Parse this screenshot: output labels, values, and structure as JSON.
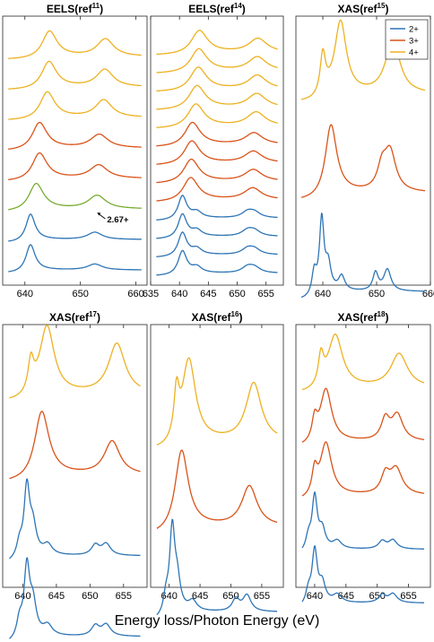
{
  "figure": {
    "xlabel": "Energy loss/Photon Energy (eV)",
    "colors": {
      "2+": "#2E75B6",
      "3+": "#D95319",
      "4+": "#EDB120",
      "2.67+": "#77AC30"
    },
    "legend": {
      "placement": "top-right of panel 3",
      "entries": [
        "2+",
        "3+",
        "4+"
      ]
    }
  },
  "chart_data": [
    {
      "type": "line",
      "title_main": "EELS(ref",
      "title_sup": "11",
      "title_end": ")",
      "xlim": [
        636,
        662
      ],
      "xticks": [
        640,
        650,
        660
      ],
      "series": [
        {
          "valence": "4+",
          "peaks": [
            [
              644.4,
              1.0,
              1.6
            ],
            [
              654.5,
              0.65,
              1.8
            ]
          ]
        },
        {
          "valence": "4+",
          "peaks": [
            [
              644.3,
              1.0,
              1.6
            ],
            [
              654.4,
              0.65,
              1.8
            ]
          ]
        },
        {
          "valence": "4+",
          "peaks": [
            [
              644.0,
              1.0,
              1.6
            ],
            [
              654.2,
              0.65,
              1.8
            ]
          ]
        },
        {
          "valence": "3+",
          "peaks": [
            [
              642.6,
              1.0,
              1.6
            ],
            [
              653.4,
              0.5,
              1.9
            ]
          ]
        },
        {
          "valence": "3+",
          "peaks": [
            [
              642.6,
              1.0,
              1.6
            ],
            [
              653.3,
              0.5,
              1.9
            ]
          ]
        },
        {
          "valence": "2.67+",
          "peaks": [
            [
              642.0,
              1.0,
              1.6
            ],
            [
              653.0,
              0.5,
              1.9
            ]
          ]
        },
        {
          "valence": "2+",
          "peaks": [
            [
              641.0,
              1.0,
              1.0
            ],
            [
              652.6,
              0.27,
              1.6
            ]
          ]
        },
        {
          "valence": "2+",
          "peaks": [
            [
              641.0,
              1.0,
              1.0
            ],
            [
              652.6,
              0.22,
              1.6
            ]
          ]
        }
      ],
      "annotation": {
        "text": "2.67+",
        "x": 653.5
      }
    },
    {
      "type": "line",
      "title_main": "EELS(ref",
      "title_sup": "14",
      "title_end": ")",
      "xlim": [
        635,
        658
      ],
      "xticks": [
        635,
        640,
        645,
        650,
        655
      ],
      "series": [
        {
          "valence": "4+",
          "peaks": [
            [
              643.4,
              1.0,
              1.7
            ],
            [
              653.6,
              0.6,
              1.9
            ]
          ]
        },
        {
          "valence": "4+",
          "peaks": [
            [
              643.3,
              1.0,
              1.7
            ],
            [
              653.5,
              0.6,
              1.9
            ]
          ]
        },
        {
          "valence": "4+",
          "peaks": [
            [
              643.2,
              1.0,
              1.7
            ],
            [
              653.5,
              0.6,
              1.9
            ]
          ]
        },
        {
          "valence": "4+",
          "peaks": [
            [
              643.0,
              1.0,
              1.7
            ],
            [
              653.4,
              0.6,
              1.9
            ]
          ]
        },
        {
          "valence": "4+",
          "peaks": [
            [
              642.8,
              1.0,
              1.7
            ],
            [
              653.3,
              0.6,
              1.9
            ]
          ]
        },
        {
          "valence": "3+",
          "peaks": [
            [
              642.2,
              1.0,
              1.6
            ],
            [
              652.9,
              0.5,
              1.8
            ]
          ]
        },
        {
          "valence": "3+",
          "peaks": [
            [
              642.1,
              1.0,
              1.6
            ],
            [
              652.8,
              0.5,
              1.8
            ]
          ]
        },
        {
          "valence": "3+",
          "peaks": [
            [
              642.0,
              1.0,
              1.6
            ],
            [
              652.8,
              0.5,
              1.8
            ]
          ]
        },
        {
          "valence": "3+",
          "peaks": [
            [
              641.9,
              1.0,
              1.6
            ],
            [
              652.7,
              0.5,
              1.8
            ]
          ]
        },
        {
          "valence": "2+",
          "peaks": [
            [
              640.5,
              1.0,
              0.9
            ],
            [
              643.0,
              0.25,
              1.0
            ],
            [
              651.8,
              0.25,
              1.2
            ],
            [
              653.0,
              0.22,
              1.2
            ]
          ]
        },
        {
          "valence": "2+",
          "peaks": [
            [
              640.5,
              1.0,
              0.9
            ],
            [
              643.0,
              0.25,
              1.0
            ],
            [
              651.8,
              0.25,
              1.2
            ],
            [
              653.0,
              0.22,
              1.2
            ]
          ]
        },
        {
          "valence": "2+",
          "peaks": [
            [
              640.5,
              1.0,
              0.9
            ],
            [
              643.0,
              0.25,
              1.0
            ],
            [
              651.8,
              0.25,
              1.2
            ],
            [
              653.0,
              0.22,
              1.2
            ]
          ]
        },
        {
          "valence": "2+",
          "peaks": [
            [
              640.5,
              1.0,
              0.9
            ],
            [
              643.0,
              0.25,
              1.0
            ],
            [
              651.8,
              0.25,
              1.2
            ],
            [
              653.0,
              0.22,
              1.2
            ]
          ]
        }
      ]
    },
    {
      "type": "line",
      "title_main": "XAS(ref",
      "title_sup": "15",
      "title_end": ")",
      "xlim": [
        635,
        660
      ],
      "xticks": [
        640,
        650,
        660
      ],
      "series": [
        {
          "valence": "4+",
          "peaks": [
            [
              640.0,
              0.55,
              0.6
            ],
            [
              643.3,
              1.0,
              1.3
            ],
            [
              653.0,
              0.75,
              1.6
            ]
          ]
        },
        {
          "valence": "3+",
          "peaks": [
            [
              641.5,
              1.0,
              1.3
            ],
            [
              651.0,
              0.3,
              1.0
            ],
            [
              652.5,
              0.55,
              1.3
            ]
          ]
        },
        {
          "valence": "2+",
          "peaks": [
            [
              638.4,
              0.3,
              0.5
            ],
            [
              639.8,
              1.0,
              0.5
            ],
            [
              641.0,
              0.35,
              0.6
            ],
            [
              643.5,
              0.2,
              0.7
            ],
            [
              649.8,
              0.25,
              0.6
            ],
            [
              652.0,
              0.3,
              0.8
            ]
          ]
        }
      ]
    },
    {
      "type": "line",
      "title_main": "XAS(ref",
      "title_sup": "17",
      "title_end": ")",
      "xlim": [
        637,
        658.5
      ],
      "xticks": [
        640,
        645,
        650,
        655
      ],
      "series": [
        {
          "valence": "4+",
          "peaks": [
            [
              641.2,
              0.45,
              0.5
            ],
            [
              643.6,
              1.0,
              1.3
            ],
            [
              654.0,
              0.75,
              1.5
            ]
          ]
        },
        {
          "valence": "3+",
          "peaks": [
            [
              642.8,
              1.0,
              1.3
            ],
            [
              653.3,
              0.5,
              1.4
            ]
          ]
        },
        {
          "valence": "2+",
          "peaks": [
            [
              639.5,
              0.2,
              0.5
            ],
            [
              640.6,
              1.0,
              0.5
            ],
            [
              641.5,
              0.4,
              0.6
            ],
            [
              643.7,
              0.15,
              0.8
            ],
            [
              650.8,
              0.15,
              0.7
            ],
            [
              652.4,
              0.17,
              0.8
            ]
          ]
        },
        {
          "valence": "2+",
          "peaks": [
            [
              639.5,
              0.25,
              0.5
            ],
            [
              640.6,
              1.0,
              0.5
            ],
            [
              641.5,
              0.45,
              0.6
            ],
            [
              643.7,
              0.15,
              0.8
            ],
            [
              650.8,
              0.15,
              0.7
            ],
            [
              652.4,
              0.17,
              0.8
            ]
          ]
        }
      ]
    },
    {
      "type": "line",
      "title_main": "XAS(ref",
      "title_sup": "16",
      "title_end": ")",
      "xlim": [
        637,
        658.5
      ],
      "xticks": [
        640,
        645,
        650,
        655
      ],
      "series": [
        {
          "valence": "4+",
          "peaks": [
            [
              641.2,
              0.55,
              0.5
            ],
            [
              643.2,
              1.0,
              1.3
            ],
            [
              653.7,
              0.72,
              1.5
            ]
          ]
        },
        {
          "valence": "3+",
          "peaks": [
            [
              642.0,
              1.0,
              1.3
            ],
            [
              653.0,
              0.5,
              1.5
            ]
          ]
        },
        {
          "valence": "2+",
          "peaks": [
            [
              639.5,
              0.2,
              0.5
            ],
            [
              640.5,
              1.0,
              0.5
            ],
            [
              641.3,
              0.35,
              0.6
            ],
            [
              643.8,
              0.12,
              0.8
            ],
            [
              650.8,
              0.15,
              0.7
            ],
            [
              652.6,
              0.2,
              0.8
            ]
          ]
        }
      ]
    },
    {
      "type": "line",
      "title_main": "XAS(ref",
      "title_sup": "18",
      "title_end": ")",
      "xlim": [
        637,
        658.5
      ],
      "xticks": [
        640,
        645,
        650,
        655
      ],
      "series": [
        {
          "valence": "4+",
          "peaks": [
            [
              641.0,
              0.55,
              0.5
            ],
            [
              643.3,
              1.0,
              1.4
            ],
            [
              653.5,
              0.65,
              1.6
            ]
          ]
        },
        {
          "valence": "3+",
          "peaks": [
            [
              640.0,
              0.4,
              0.5
            ],
            [
              641.8,
              1.0,
              1.1
            ],
            [
              651.3,
              0.4,
              0.8
            ],
            [
              653.2,
              0.5,
              1.1
            ]
          ]
        },
        {
          "valence": "3+",
          "peaks": [
            [
              640.0,
              0.45,
              0.5
            ],
            [
              641.8,
              1.0,
              1.1
            ],
            [
              651.3,
              0.35,
              0.8
            ],
            [
              653.0,
              0.5,
              1.2
            ]
          ]
        },
        {
          "valence": "2+",
          "peaks": [
            [
              639.0,
              0.25,
              0.5
            ],
            [
              640.0,
              1.0,
              0.5
            ],
            [
              641.2,
              0.35,
              0.6
            ],
            [
              643.6,
              0.15,
              0.8
            ],
            [
              650.8,
              0.15,
              0.7
            ],
            [
              652.5,
              0.17,
              0.8
            ]
          ]
        },
        {
          "valence": "2+",
          "peaks": [
            [
              639.0,
              0.25,
              0.5
            ],
            [
              640.0,
              1.0,
              0.5
            ],
            [
              641.2,
              0.35,
              0.6
            ],
            [
              643.6,
              0.15,
              0.8
            ],
            [
              650.8,
              0.15,
              0.7
            ],
            [
              652.5,
              0.17,
              0.8
            ]
          ]
        }
      ]
    }
  ]
}
